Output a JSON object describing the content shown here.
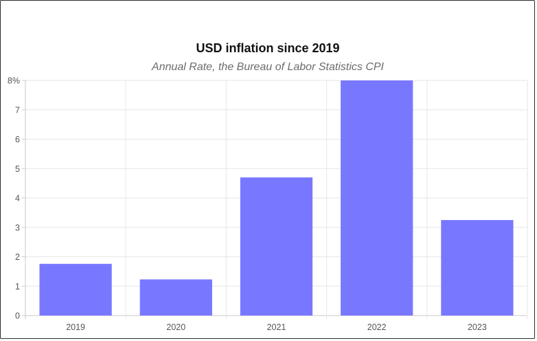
{
  "chart_data": {
    "type": "bar",
    "title": "USD inflation since 2019",
    "subtitle": "Annual Rate, the Bureau of Labor Statistics CPI",
    "categories": [
      "2019",
      "2020",
      "2021",
      "2022",
      "2023"
    ],
    "values": [
      1.76,
      1.23,
      4.7,
      8.0,
      3.25
    ],
    "ylim": [
      0,
      8
    ],
    "yticks": [
      0,
      1,
      2,
      3,
      4,
      5,
      6,
      7,
      8
    ],
    "ytick_labels": [
      "0",
      "1",
      "2",
      "3",
      "4",
      "5",
      "6",
      "7",
      "8%"
    ],
    "xlabel": "",
    "ylabel": "",
    "grid": true,
    "legend": "none",
    "bar_color": "#7878ff"
  }
}
